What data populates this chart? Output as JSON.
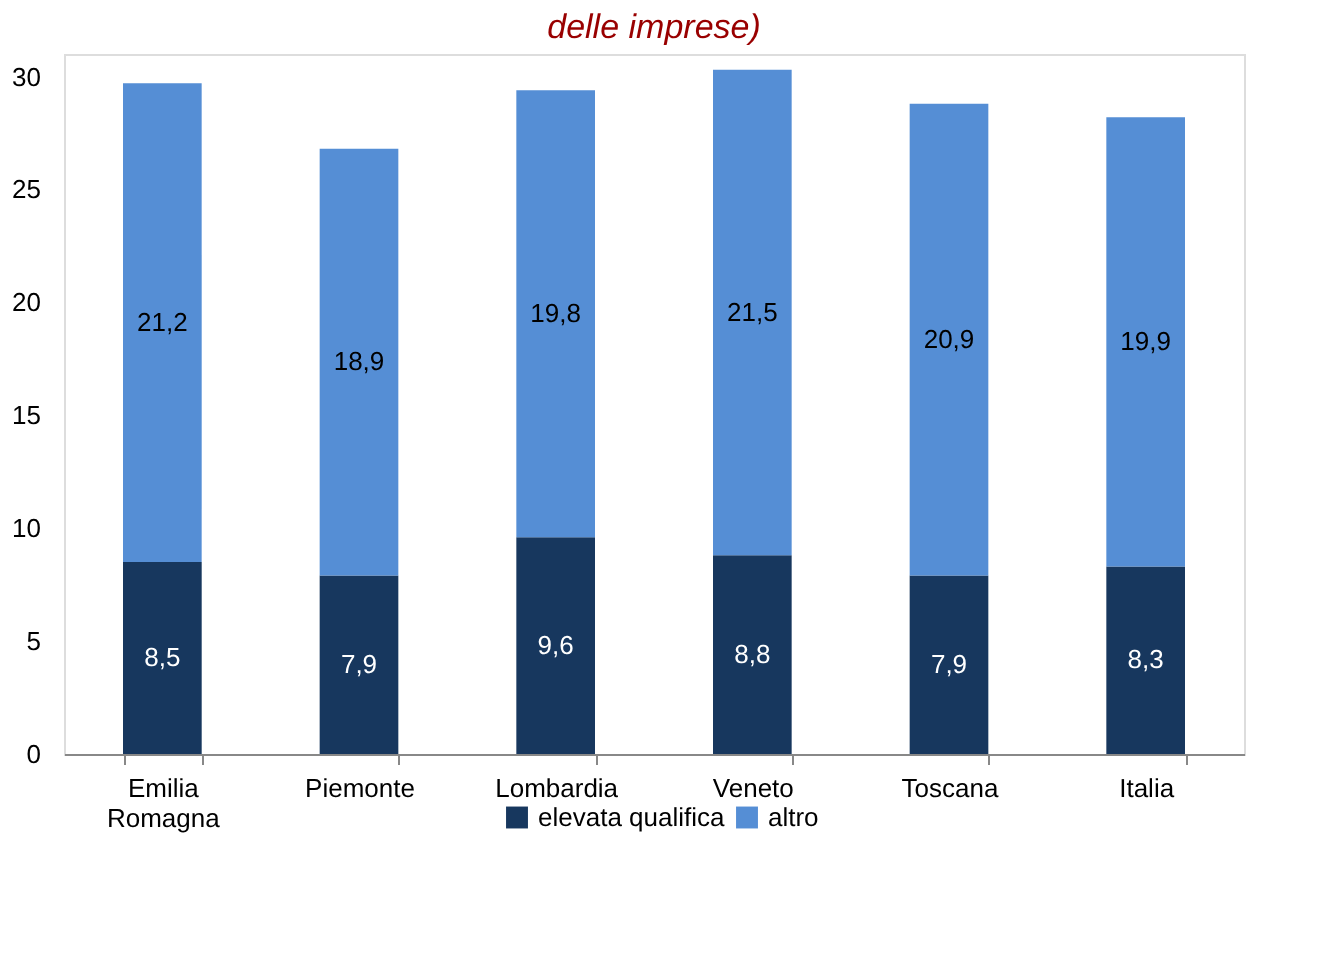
{
  "chart_data": {
    "type": "bar",
    "stacked": true,
    "title": "delle imprese)",
    "categories": [
      "Emilia Romagna",
      "Piemonte",
      "Lombardia",
      "Veneto",
      "Toscana",
      "Italia"
    ],
    "series": [
      {
        "name": "elevata qualifica",
        "color": "#17375e",
        "values": [
          8.5,
          7.9,
          9.6,
          8.8,
          7.9,
          8.3
        ],
        "value_labels": [
          "8,5",
          "7,9",
          "9,6",
          "8,8",
          "7,9",
          "8,3"
        ]
      },
      {
        "name": "altro",
        "color": "#558ed5",
        "values": [
          21.2,
          18.9,
          19.8,
          21.5,
          20.9,
          19.9
        ],
        "value_labels": [
          "21,2",
          "18,9",
          "19,8",
          "21,5",
          "20,9",
          "19,9"
        ]
      }
    ],
    "ylim": [
      0,
      31
    ],
    "yticks": [
      0,
      5,
      10,
      15,
      20,
      25,
      30
    ],
    "grid": false,
    "legend": "bottom"
  }
}
